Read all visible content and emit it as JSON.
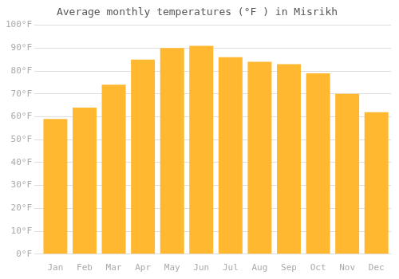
{
  "chart_data": {
    "type": "bar",
    "title": "Average monthly temperatures (°F ) in Misrikh",
    "categories": [
      "Jan",
      "Feb",
      "Mar",
      "Apr",
      "May",
      "Jun",
      "Jul",
      "Aug",
      "Sep",
      "Oct",
      "Nov",
      "Dec"
    ],
    "values": [
      59,
      64,
      74,
      85,
      90,
      91,
      86,
      84,
      83,
      79,
      70,
      62
    ],
    "color": "#FFB830",
    "ylim": [
      0,
      100
    ],
    "yticks": [
      {
        "value": 0,
        "label": "0°F"
      },
      {
        "value": 10,
        "label": "10°F"
      },
      {
        "value": 20,
        "label": "20°F"
      },
      {
        "value": 30,
        "label": "30°F"
      },
      {
        "value": 40,
        "label": "40°F"
      },
      {
        "value": 50,
        "label": "50°F"
      },
      {
        "value": 60,
        "label": "60°F"
      },
      {
        "value": 70,
        "label": "70°F"
      },
      {
        "value": 80,
        "label": "80°F"
      },
      {
        "value": 90,
        "label": "90°F"
      },
      {
        "value": 100,
        "label": "100°F"
      }
    ],
    "grid": true
  }
}
